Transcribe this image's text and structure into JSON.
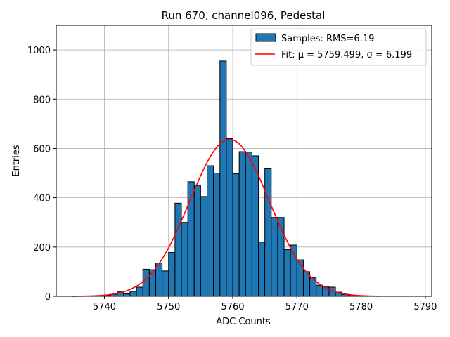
{
  "chart_data": {
    "type": "bar",
    "title": "Run 670, channel096, Pedestal",
    "xlabel": "ADC Counts",
    "ylabel": "Entries",
    "xlim": [
      5732.5,
      5791.0
    ],
    "ylim": [
      0,
      1100
    ],
    "xticks": [
      5740,
      5750,
      5760,
      5770,
      5780,
      5790
    ],
    "yticks": [
      0,
      200,
      400,
      600,
      800,
      1000
    ],
    "grid": true,
    "legend_position": "top-right",
    "histogram": {
      "name": "Samples: RMS=6.19",
      "color": "#1f77b4",
      "edge_color": "#000000",
      "bin_width": 1,
      "bin_starts": [
        5740,
        5741,
        5742,
        5743,
        5744,
        5745,
        5746,
        5747,
        5748,
        5749,
        5750,
        5751,
        5752,
        5753,
        5754,
        5755,
        5756,
        5757,
        5758,
        5759,
        5760,
        5761,
        5762,
        5763,
        5764,
        5765,
        5766,
        5767,
        5768,
        5769,
        5770,
        5771,
        5772,
        5773,
        5774,
        5775,
        5776,
        5777,
        5778,
        5779
      ],
      "values": [
        3,
        8,
        18,
        10,
        20,
        37,
        110,
        108,
        135,
        103,
        178,
        378,
        300,
        465,
        450,
        405,
        530,
        500,
        955,
        640,
        497,
        587,
        585,
        570,
        220,
        520,
        320,
        320,
        190,
        208,
        148,
        100,
        75,
        45,
        38,
        37,
        17,
        8,
        5,
        2
      ]
    },
    "fit": {
      "name": "Fit: μ = 5759.499, σ = 6.199",
      "color": "#ff0000",
      "mu": 5759.499,
      "sigma": 6.199,
      "amplitude": 637,
      "x_range": [
        5735,
        5783
      ]
    }
  }
}
